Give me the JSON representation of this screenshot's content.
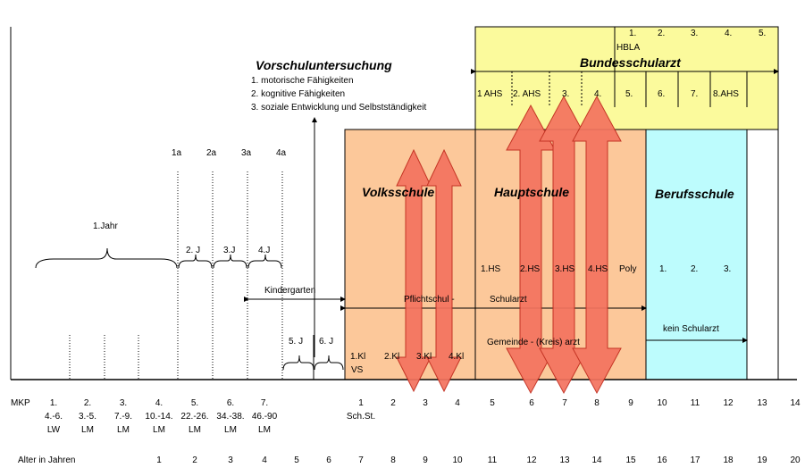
{
  "screening": {
    "title": "Vorschuluntersuchung",
    "items": [
      "1. motorische Fähigkeiten",
      "2. kognitive Fähigkeiten",
      "3. soziale Entwicklung und Selbstständigkeit"
    ]
  },
  "schools": {
    "volksschule": "Volksschule",
    "hauptschule": "Hauptschule",
    "berufsschule": "Berufsschule",
    "bundesschularzt": "Bundesschularzt",
    "kindergarten": "Kindergarten",
    "pflichtschul": "Pflichtschul -",
    "schularzt": "Schularzt",
    "gemeinde": "Gemeinde - (Kreis) arzt",
    "kein_schularzt": "kein Schularzt",
    "hbla": "HBLA",
    "vs": "VS",
    "poly": "Poly"
  },
  "ahs_top": [
    "1.",
    "2.",
    "3.",
    "4.",
    "5."
  ],
  "ahs_grades": [
    "1 AHS",
    "2. AHS",
    "3.",
    "4.",
    "5.",
    "6.",
    "7.",
    "8.AHS"
  ],
  "hs_grades": [
    "1.HS",
    "2.HS",
    "3.HS",
    "4.HS"
  ],
  "berufs_grades": [
    "1.",
    "2.",
    "3."
  ],
  "vs_grades": [
    "1.Kl",
    "2.Kl",
    "3.Kl",
    "4.Kl"
  ],
  "checkup_labels": [
    "1a",
    "2a",
    "3a",
    "4a"
  ],
  "year_labels": {
    "y1": "1.Jahr",
    "y2": "2. J",
    "y3": "3.J",
    "y4": "4.J",
    "y5": "5. J",
    "y6": "6. J"
  },
  "mkp": {
    "label": "MKP",
    "numbers": [
      "1.",
      "2.",
      "3.",
      "4.",
      "5.",
      "6.",
      "7."
    ],
    "ranges": [
      "4.-6.",
      "3.-5.",
      "7.-9.",
      "10.-14.",
      "22.-26.",
      "34.-38.",
      "46.-90"
    ],
    "units": [
      "LW",
      "LM",
      "LM",
      "LM",
      "LM",
      "LM",
      "LM"
    ]
  },
  "school_years": [
    "1",
    "2",
    "3",
    "4",
    "5",
    "6",
    "7",
    "8",
    "9",
    "10",
    "11",
    "12",
    "13",
    "14"
  ],
  "school_years_note": "Sch.St.",
  "age": {
    "label": "Alter in Jahren",
    "values": [
      "1",
      "2",
      "3",
      "4",
      "5",
      "6",
      "7",
      "8",
      "9",
      "10",
      "11",
      "12",
      "13",
      "14",
      "15",
      "16",
      "17",
      "18",
      "19",
      "20"
    ]
  },
  "colors": {
    "orange": "#fcc89a",
    "yellow": "#fbfa9c",
    "cyan": "#bdfcfd",
    "arrow": "#f4735f",
    "arrow_stroke": "#c0281a"
  }
}
